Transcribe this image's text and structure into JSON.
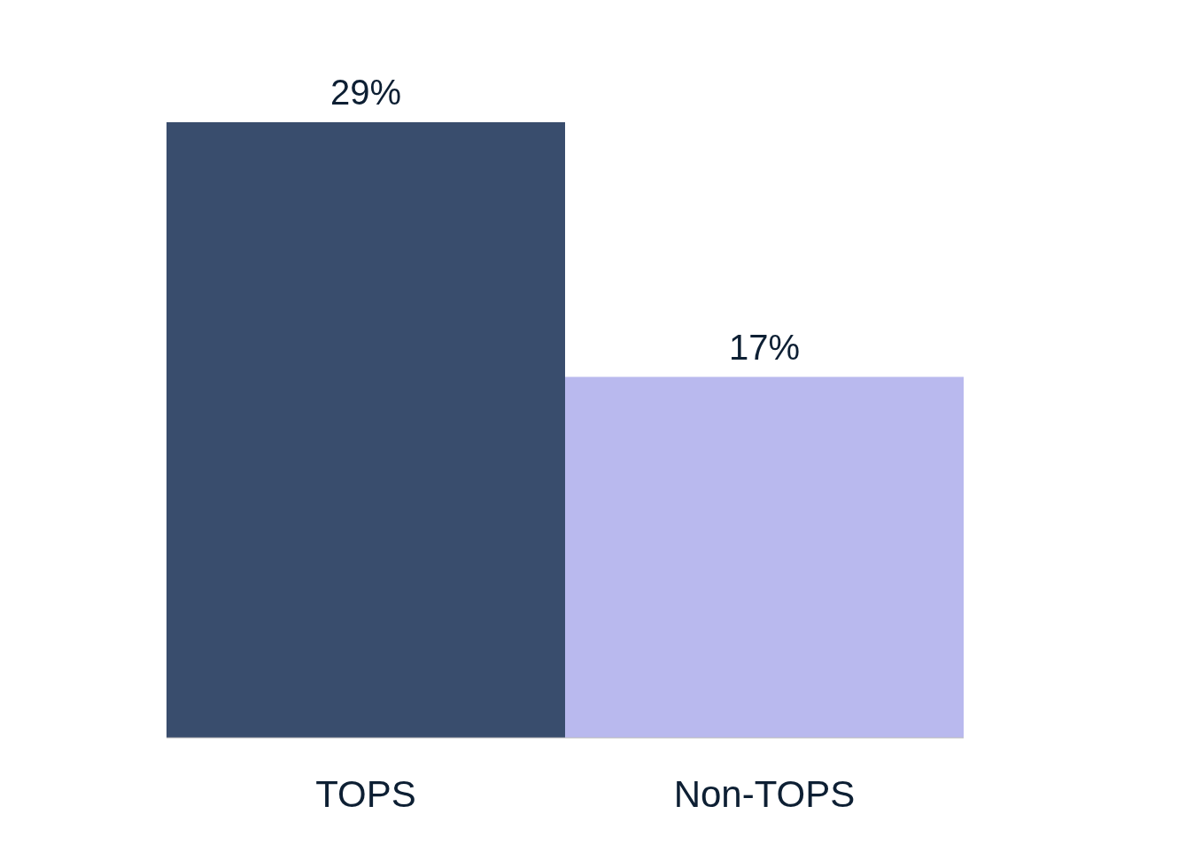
{
  "chart_data": {
    "type": "bar",
    "categories": [
      "TOPS",
      "Non-TOPS"
    ],
    "values": [
      29,
      17
    ],
    "colors": [
      "#394d6d",
      "#b9b9ee"
    ],
    "value_labels": [
      "29%",
      "17%"
    ]
  }
}
